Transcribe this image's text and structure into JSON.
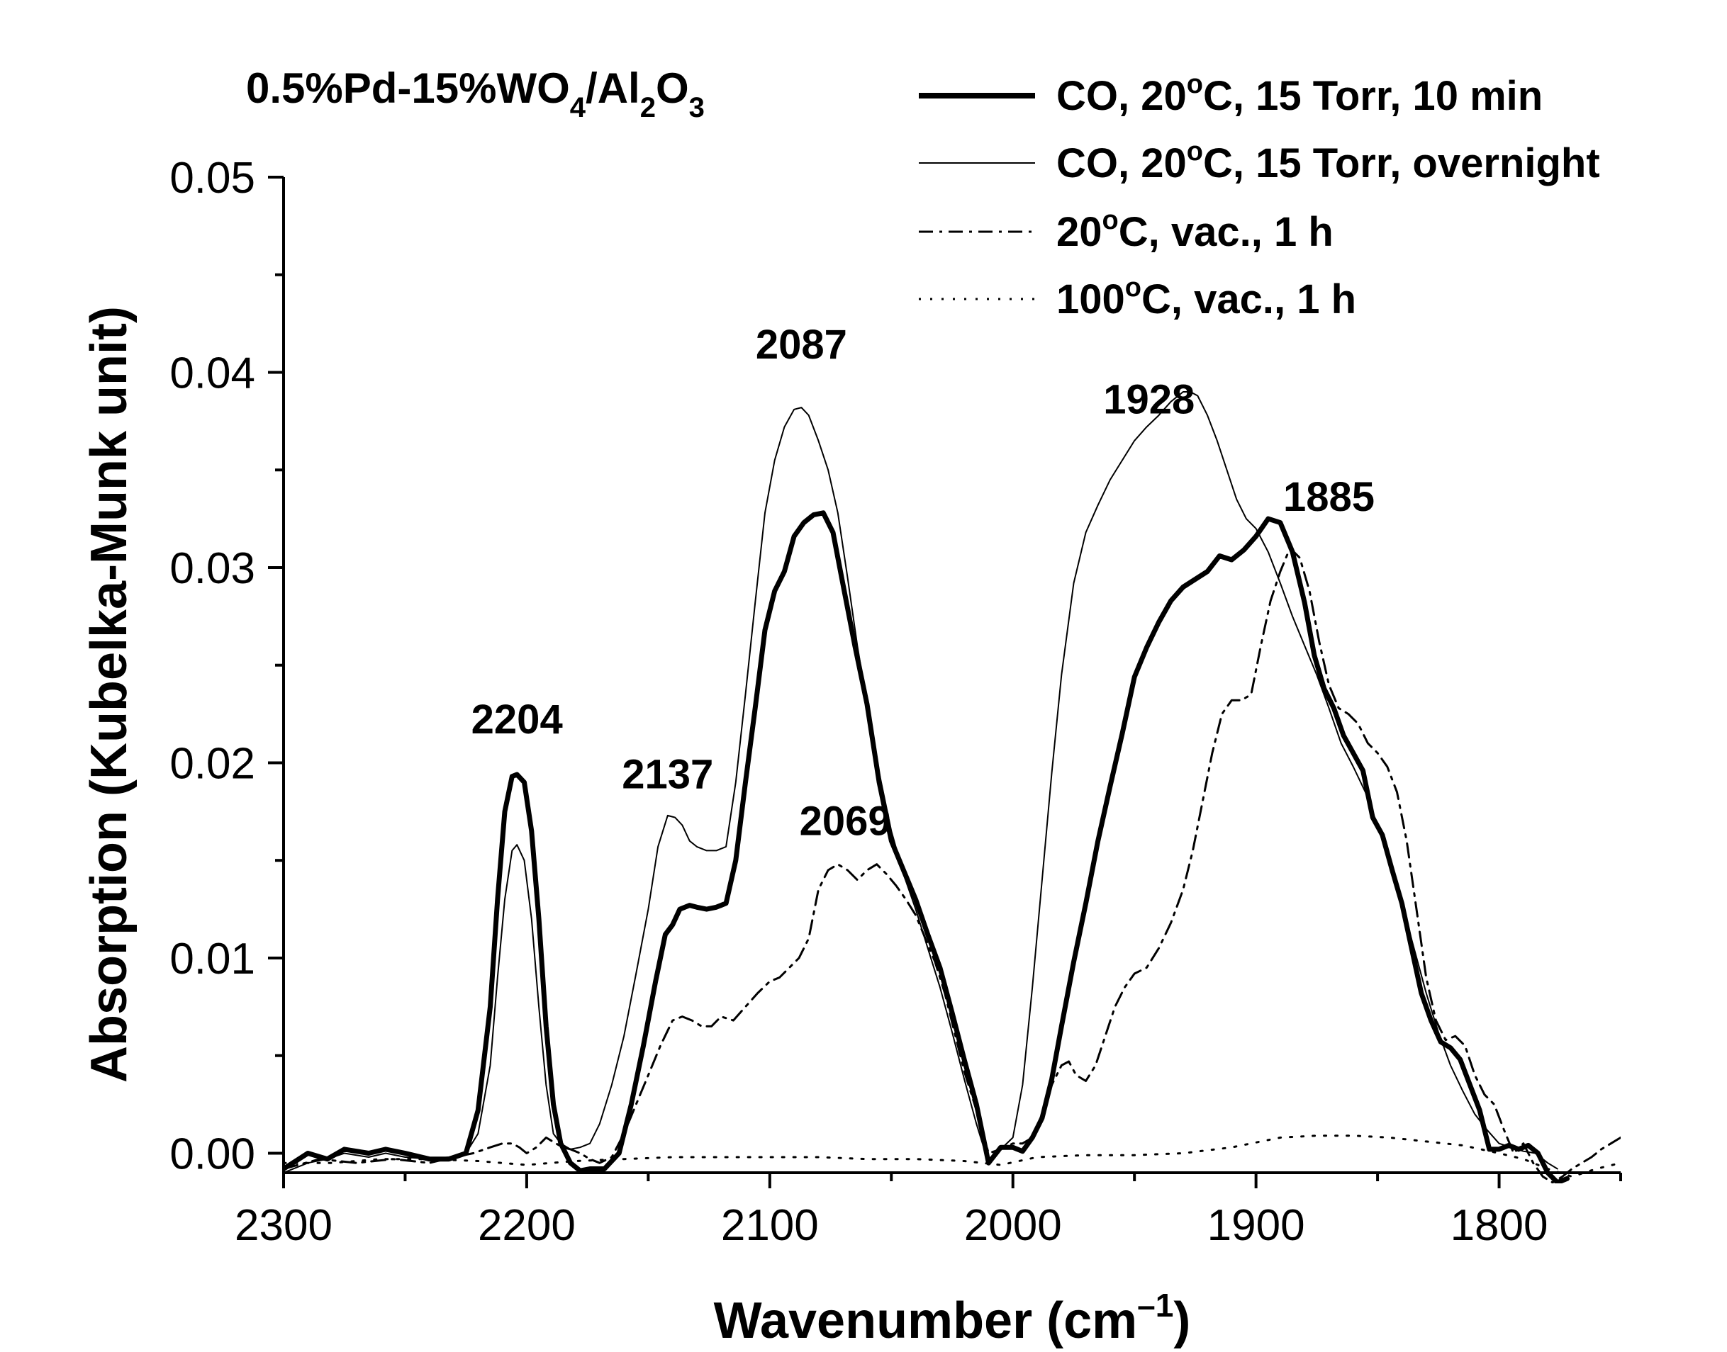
{
  "chart_data": {
    "type": "line",
    "title": {
      "prefix": "0.5%Pd-15%WO",
      "sub1": "4",
      "mid": "/Al",
      "sub2": "2",
      "mid2": "O",
      "sub3": "3"
    },
    "xlabel": {
      "main": "Wavenumber (cm",
      "sup": "–1",
      "close": ")"
    },
    "ylabel": "Absorption (Kubelka-Munk unit)",
    "xlim": [
      2300,
      1750
    ],
    "ylim": [
      -0.001,
      0.05
    ],
    "x_ticks": [
      2300,
      2200,
      2100,
      2000,
      1900,
      1800
    ],
    "x_tick_labels": [
      "2300",
      "2200",
      "2100",
      "2000",
      "1900",
      "1800"
    ],
    "y_ticks": [
      0.0,
      0.01,
      0.02,
      0.03,
      0.04,
      0.05
    ],
    "y_tick_labels": [
      "0.00",
      "0.01",
      "0.02",
      "0.03",
      "0.04",
      "0.05"
    ],
    "legend": [
      {
        "pre": "CO, 20",
        "deg": "o",
        "post": "C, 15 Torr, 10 min",
        "style": "thick"
      },
      {
        "pre": "CO, 20",
        "deg": "o",
        "post": "C, 15 Torr, overnight",
        "style": "thin"
      },
      {
        "pre": "20",
        "deg": "o",
        "post": "C, vac., 1 h",
        "style": "dashdot"
      },
      {
        "pre": "100",
        "deg": "o",
        "post": "C, vac., 1 h",
        "style": "dotted"
      }
    ],
    "annotations": [
      {
        "text": "2204",
        "x": 2204,
        "y": 0.0215
      },
      {
        "text": "2137",
        "x": 2142,
        "y": 0.0187
      },
      {
        "text": "2069",
        "x": 2069,
        "y": 0.0163
      },
      {
        "text": "2087",
        "x": 2087,
        "y": 0.0407
      },
      {
        "text": "1928",
        "x": 1944,
        "y": 0.0379
      },
      {
        "text": "1885",
        "x": 1870,
        "y": 0.0329
      }
    ],
    "series": [
      {
        "name": "CO, 20°C, 15 Torr, 10 min",
        "style": "thick",
        "x": [
          2300,
          2290,
          2282,
          2275,
          2265,
          2258,
          2250,
          2240,
          2232,
          2225,
          2220,
          2215,
          2212,
          2209,
          2206,
          2204,
          2201,
          2198,
          2195,
          2192,
          2189,
          2186,
          2182,
          2178,
          2174,
          2168,
          2162,
          2157,
          2152,
          2147,
          2143,
          2140,
          2137,
          2133,
          2130,
          2126,
          2122,
          2118,
          2114,
          2110,
          2106,
          2102,
          2098,
          2094,
          2090,
          2086,
          2082,
          2078,
          2074,
          2070,
          2065,
          2060,
          2055,
          2050,
          2045,
          2040,
          2035,
          2030,
          2025,
          2020,
          2015,
          2010,
          2005,
          2000,
          1996,
          1992,
          1988,
          1984,
          1980,
          1975,
          1970,
          1965,
          1960,
          1955,
          1950,
          1945,
          1940,
          1935,
          1930,
          1925,
          1920,
          1915,
          1910,
          1905,
          1900,
          1895,
          1890,
          1885,
          1880,
          1876,
          1872,
          1868,
          1864,
          1860,
          1856,
          1852,
          1848,
          1844,
          1840,
          1836,
          1832,
          1828,
          1824,
          1820,
          1816,
          1812,
          1808,
          1804,
          1800,
          1796,
          1792,
          1788,
          1784,
          1780,
          1776,
          1772
        ],
        "y": [
          -0.0008,
          0.0,
          -0.0003,
          0.0002,
          0.0,
          0.0002,
          0.0,
          -0.0003,
          -0.0003,
          0.0,
          0.0022,
          0.0075,
          0.013,
          0.0175,
          0.0193,
          0.0194,
          0.019,
          0.0165,
          0.012,
          0.0065,
          0.0025,
          0.0005,
          -0.0005,
          -0.0009,
          -0.0008,
          -0.0008,
          0.0,
          0.0025,
          0.0055,
          0.0088,
          0.0112,
          0.0117,
          0.0125,
          0.0127,
          0.0126,
          0.0125,
          0.0126,
          0.0128,
          0.015,
          0.019,
          0.0228,
          0.0268,
          0.0288,
          0.0298,
          0.0316,
          0.0323,
          0.0327,
          0.0328,
          0.0318,
          0.0292,
          0.026,
          0.023,
          0.019,
          0.016,
          0.0145,
          0.013,
          0.0112,
          0.0095,
          0.0072,
          0.0048,
          0.0025,
          -0.0005,
          0.0003,
          0.0003,
          0.0001,
          0.0008,
          0.0018,
          0.0038,
          0.0065,
          0.0098,
          0.0128,
          0.016,
          0.0188,
          0.0215,
          0.0244,
          0.0259,
          0.0272,
          0.0283,
          0.029,
          0.0294,
          0.0298,
          0.0306,
          0.0304,
          0.0309,
          0.0316,
          0.0325,
          0.0323,
          0.0308,
          0.0282,
          0.0255,
          0.0238,
          0.0228,
          0.0214,
          0.0205,
          0.0196,
          0.0172,
          0.0163,
          0.0145,
          0.0128,
          0.0105,
          0.0082,
          0.0068,
          0.0057,
          0.0054,
          0.0048,
          0.0035,
          0.0022,
          0.0002,
          0.0002,
          0.0004,
          0.0002,
          0.0004,
          0.0,
          -0.001,
          -0.0015,
          -0.0013
        ]
      },
      {
        "name": "CO, 20°C, 15 Torr, overnight",
        "style": "thin",
        "x": [
          2300,
          2290,
          2282,
          2275,
          2265,
          2258,
          2250,
          2240,
          2232,
          2225,
          2220,
          2215,
          2212,
          2209,
          2206,
          2204,
          2201,
          2198,
          2195,
          2192,
          2189,
          2186,
          2182,
          2178,
          2174,
          2170,
          2165,
          2160,
          2155,
          2150,
          2146,
          2142,
          2139,
          2136,
          2133,
          2130,
          2126,
          2122,
          2118,
          2114,
          2110,
          2106,
          2102,
          2098,
          2094,
          2090,
          2087,
          2084,
          2080,
          2076,
          2072,
          2068,
          2064,
          2060,
          2055,
          2050,
          2045,
          2040,
          2035,
          2030,
          2025,
          2020,
          2015,
          2010,
          2005,
          2000,
          1996,
          1992,
          1988,
          1984,
          1980,
          1975,
          1970,
          1965,
          1960,
          1955,
          1950,
          1945,
          1940,
          1935,
          1930,
          1927,
          1924,
          1920,
          1916,
          1912,
          1908,
          1904,
          1900,
          1895,
          1890,
          1885,
          1880,
          1875,
          1870,
          1865,
          1860,
          1855,
          1850,
          1845,
          1840,
          1835,
          1830,
          1825,
          1820,
          1815,
          1810,
          1805,
          1800,
          1795,
          1790,
          1785,
          1780,
          1776
        ],
        "y": [
          -0.001,
          -0.0005,
          -0.0003,
          0.0,
          -0.0002,
          0.0,
          -0.0002,
          -0.0003,
          -0.0002,
          0.0,
          0.001,
          0.0045,
          0.009,
          0.013,
          0.0155,
          0.0158,
          0.015,
          0.012,
          0.0075,
          0.0035,
          0.001,
          0.0005,
          0.0002,
          0.0003,
          0.0005,
          0.0015,
          0.0035,
          0.006,
          0.0092,
          0.0125,
          0.0157,
          0.0173,
          0.0172,
          0.0168,
          0.016,
          0.0157,
          0.0155,
          0.0155,
          0.0157,
          0.019,
          0.0235,
          0.0282,
          0.0328,
          0.0355,
          0.0372,
          0.0381,
          0.0382,
          0.0378,
          0.0365,
          0.035,
          0.0328,
          0.0295,
          0.026,
          0.023,
          0.0195,
          0.0165,
          0.0143,
          0.0125,
          0.0105,
          0.0085,
          0.0062,
          0.0038,
          0.0015,
          -0.0005,
          0.0002,
          0.0008,
          0.0035,
          0.0085,
          0.014,
          0.0195,
          0.0245,
          0.0292,
          0.0318,
          0.0332,
          0.0345,
          0.0355,
          0.0365,
          0.0372,
          0.0378,
          0.0385,
          0.039,
          0.039,
          0.0388,
          0.0378,
          0.0365,
          0.035,
          0.0335,
          0.0325,
          0.032,
          0.0308,
          0.0292,
          0.0275,
          0.026,
          0.0245,
          0.0228,
          0.021,
          0.0198,
          0.0185,
          0.0168,
          0.015,
          0.0128,
          0.0105,
          0.0082,
          0.0062,
          0.0045,
          0.0032,
          0.002,
          0.0012,
          0.0005,
          0.0003,
          0.0001,
          0.0,
          -0.0005,
          -0.0008
        ]
      },
      {
        "name": "20°C, vac., 1 h",
        "style": "dashdot",
        "x": [
          2300,
          2285,
          2270,
          2255,
          2240,
          2230,
          2222,
          2215,
          2210,
          2206,
          2203,
          2200,
          2196,
          2192,
          2188,
          2185,
          2182,
          2178,
          2174,
          2170,
          2165,
          2160,
          2155,
          2150,
          2145,
          2140,
          2136,
          2132,
          2128,
          2124,
          2120,
          2115,
          2110,
          2105,
          2100,
          2096,
          2092,
          2088,
          2084,
          2080,
          2076,
          2072,
          2068,
          2064,
          2060,
          2056,
          2052,
          2048,
          2044,
          2040,
          2036,
          2032,
          2028,
          2024,
          2020,
          2015,
          2010,
          2005,
          2000,
          1996,
          1992,
          1988,
          1984,
          1980,
          1977,
          1974,
          1970,
          1966,
          1962,
          1958,
          1954,
          1950,
          1945,
          1940,
          1935,
          1930,
          1926,
          1922,
          1918,
          1914,
          1910,
          1906,
          1902,
          1898,
          1894,
          1890,
          1886,
          1882,
          1878,
          1874,
          1870,
          1866,
          1862,
          1858,
          1854,
          1850,
          1846,
          1842,
          1838,
          1834,
          1830,
          1826,
          1822,
          1818,
          1814,
          1810,
          1806,
          1802,
          1798,
          1794,
          1790,
          1786,
          1782,
          1778,
          1774,
          1770,
          1766,
          1762,
          1758,
          1754,
          1750
        ],
        "y": [
          -0.0008,
          -0.0003,
          -0.0005,
          -0.0003,
          -0.0005,
          -0.0002,
          0.0,
          0.0003,
          0.0005,
          0.0005,
          0.0003,
          0.0,
          0.0003,
          0.0008,
          0.0005,
          0.0003,
          0.0002,
          0.0,
          -0.0003,
          -0.0005,
          -0.0002,
          0.001,
          0.0025,
          0.004,
          0.0055,
          0.0068,
          0.007,
          0.0068,
          0.0065,
          0.0065,
          0.007,
          0.0068,
          0.0075,
          0.0082,
          0.0088,
          0.009,
          0.0095,
          0.01,
          0.011,
          0.0135,
          0.0145,
          0.0148,
          0.0145,
          0.014,
          0.0145,
          0.0148,
          0.0143,
          0.0137,
          0.013,
          0.0122,
          0.011,
          0.0098,
          0.0082,
          0.0062,
          0.0042,
          0.0022,
          0.0,
          0.0002,
          0.0005,
          0.0005,
          0.0008,
          0.002,
          0.0035,
          0.0045,
          0.0047,
          0.004,
          0.0037,
          0.0045,
          0.006,
          0.0075,
          0.0085,
          0.0092,
          0.0095,
          0.0105,
          0.0118,
          0.0135,
          0.0155,
          0.018,
          0.0205,
          0.0225,
          0.0232,
          0.0232,
          0.0235,
          0.026,
          0.0283,
          0.0298,
          0.031,
          0.0305,
          0.0288,
          0.0262,
          0.024,
          0.0228,
          0.0225,
          0.022,
          0.021,
          0.0205,
          0.0198,
          0.0185,
          0.016,
          0.0125,
          0.009,
          0.0068,
          0.0058,
          0.006,
          0.0055,
          0.004,
          0.003,
          0.0025,
          0.0012,
          0.0,
          0.0005,
          -0.0005,
          -0.0012,
          -0.0015,
          -0.0012,
          -0.0008,
          -0.0005,
          -0.0002,
          0.0002,
          0.0005,
          0.0008
        ]
      },
      {
        "name": "100°C, vac., 1 h",
        "style": "dotted",
        "x": [
          2300,
          2280,
          2260,
          2240,
          2220,
          2200,
          2180,
          2160,
          2140,
          2120,
          2100,
          2080,
          2060,
          2040,
          2020,
          2005,
          1990,
          1970,
          1950,
          1930,
          1910,
          1890,
          1875,
          1860,
          1845,
          1830,
          1815,
          1800,
          1790,
          1780,
          1770,
          1760,
          1750
        ],
        "y": [
          -0.0005,
          -0.0005,
          -0.0003,
          -0.0003,
          -0.0004,
          -0.0006,
          -0.0004,
          -0.0003,
          -0.0002,
          -0.0002,
          -0.0002,
          -0.0002,
          -0.0003,
          -0.0003,
          -0.0004,
          -0.0006,
          -0.0002,
          -0.0001,
          -0.0001,
          0.0,
          0.0003,
          0.0008,
          0.0009,
          0.0009,
          0.0008,
          0.0006,
          0.0004,
          0.0,
          -0.0003,
          -0.0008,
          -0.0012,
          -0.0008,
          -0.0005
        ]
      }
    ]
  }
}
